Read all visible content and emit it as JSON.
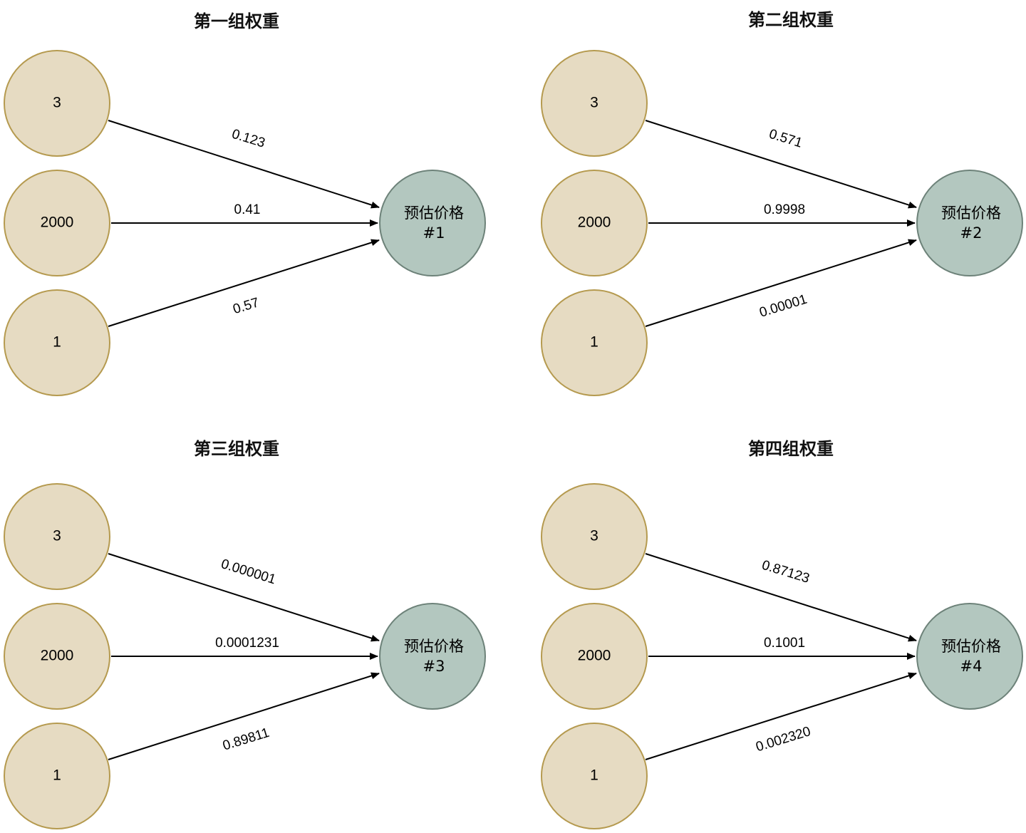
{
  "colors": {
    "input_fill": "#e6dbc2",
    "input_stroke": "#b59a4f",
    "output_fill": "#b3c7bf",
    "output_stroke": "#6d8279",
    "edge": "#000000"
  },
  "panels": [
    {
      "title": "第一组权重",
      "inputs": [
        "3",
        "2000",
        "1"
      ],
      "output": [
        "预估价格",
        "#1"
      ],
      "weights": [
        "0.123",
        "0.41",
        "0.57"
      ]
    },
    {
      "title": "第二组权重",
      "inputs": [
        "3",
        "2000",
        "1"
      ],
      "output": [
        "预估价格",
        "#2"
      ],
      "weights": [
        "0.571",
        "0.9998",
        "0.00001"
      ]
    },
    {
      "title": "第三组权重",
      "inputs": [
        "3",
        "2000",
        "1"
      ],
      "output": [
        "预估价格",
        "#3"
      ],
      "weights": [
        "0.000001",
        "0.0001231",
        "0.89811"
      ]
    },
    {
      "title": "第四组权重",
      "inputs": [
        "3",
        "2000",
        "1"
      ],
      "output": [
        "预估价格",
        "#4"
      ],
      "weights": [
        "0.87123",
        "0.1001",
        "0.002320"
      ]
    }
  ]
}
